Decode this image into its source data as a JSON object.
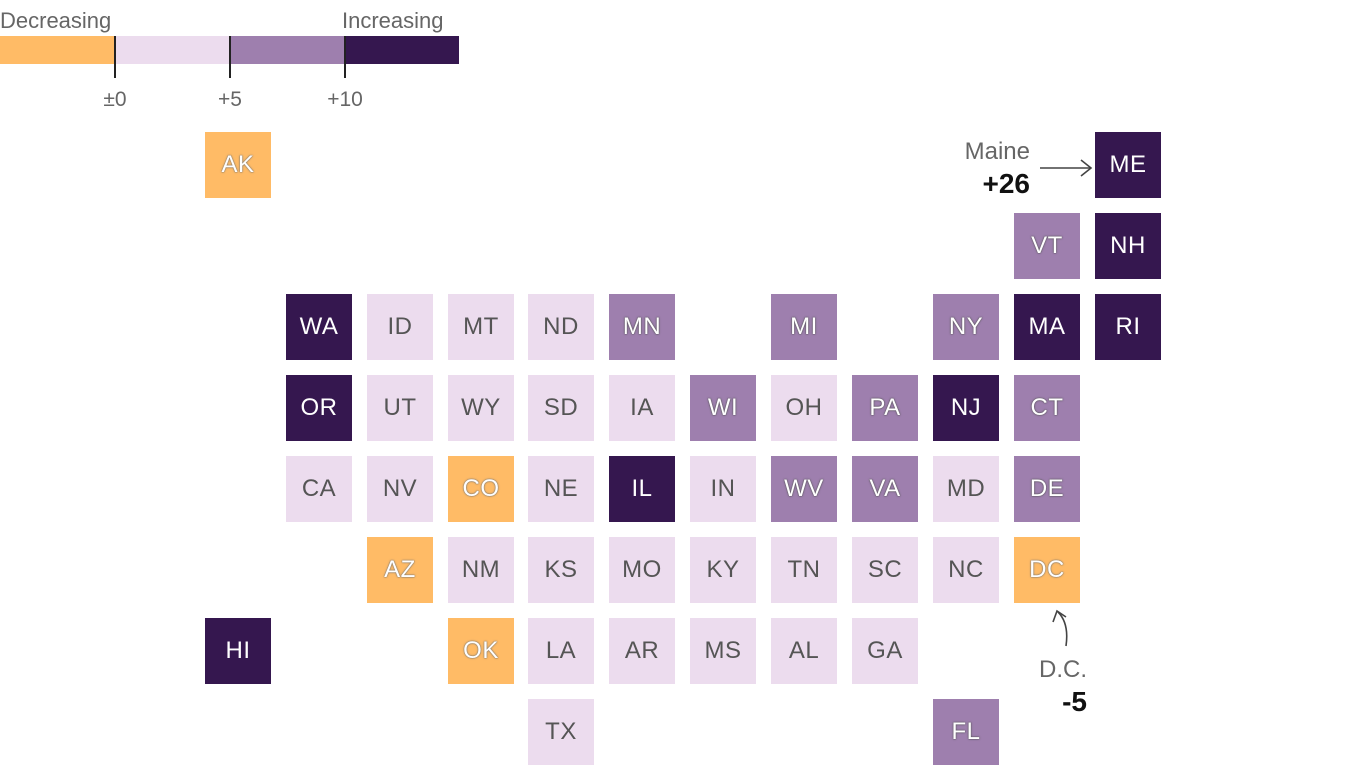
{
  "legend": {
    "decreasing_label": "Decreasing",
    "increasing_label": "Increasing",
    "ticks": [
      "±0",
      "+5",
      "+10"
    ],
    "colors": {
      "decreasing": "#ffbb66",
      "low": "#ecdcee",
      "mid": "#9e7fae",
      "high": "#35174f"
    }
  },
  "states": {
    "AK": {
      "label": "AK",
      "category": "decreasing"
    },
    "ME": {
      "label": "ME",
      "category": "high"
    },
    "VT": {
      "label": "VT",
      "category": "mid"
    },
    "NH": {
      "label": "NH",
      "category": "high"
    },
    "WA": {
      "label": "WA",
      "category": "high"
    },
    "ID": {
      "label": "ID",
      "category": "low"
    },
    "MT": {
      "label": "MT",
      "category": "low"
    },
    "ND": {
      "label": "ND",
      "category": "low"
    },
    "MN": {
      "label": "MN",
      "category": "mid"
    },
    "MI": {
      "label": "MI",
      "category": "mid"
    },
    "NY": {
      "label": "NY",
      "category": "mid"
    },
    "MA": {
      "label": "MA",
      "category": "high"
    },
    "RI": {
      "label": "RI",
      "category": "high"
    },
    "OR": {
      "label": "OR",
      "category": "high"
    },
    "UT": {
      "label": "UT",
      "category": "low"
    },
    "WY": {
      "label": "WY",
      "category": "low"
    },
    "SD": {
      "label": "SD",
      "category": "low"
    },
    "IA": {
      "label": "IA",
      "category": "low"
    },
    "WI": {
      "label": "WI",
      "category": "mid"
    },
    "OH": {
      "label": "OH",
      "category": "low"
    },
    "PA": {
      "label": "PA",
      "category": "mid"
    },
    "NJ": {
      "label": "NJ",
      "category": "high"
    },
    "CT": {
      "label": "CT",
      "category": "mid"
    },
    "CA": {
      "label": "CA",
      "category": "low"
    },
    "NV": {
      "label": "NV",
      "category": "low"
    },
    "CO": {
      "label": "CO",
      "category": "decreasing"
    },
    "NE": {
      "label": "NE",
      "category": "low"
    },
    "IL": {
      "label": "IL",
      "category": "high"
    },
    "IN": {
      "label": "IN",
      "category": "low"
    },
    "WV": {
      "label": "WV",
      "category": "mid"
    },
    "VA": {
      "label": "VA",
      "category": "mid"
    },
    "MD": {
      "label": "MD",
      "category": "low"
    },
    "DE": {
      "label": "DE",
      "category": "mid"
    },
    "AZ": {
      "label": "AZ",
      "category": "decreasing"
    },
    "NM": {
      "label": "NM",
      "category": "low"
    },
    "KS": {
      "label": "KS",
      "category": "low"
    },
    "MO": {
      "label": "MO",
      "category": "low"
    },
    "KY": {
      "label": "KY",
      "category": "low"
    },
    "TN": {
      "label": "TN",
      "category": "low"
    },
    "SC": {
      "label": "SC",
      "category": "low"
    },
    "NC": {
      "label": "NC",
      "category": "low"
    },
    "DC": {
      "label": "DC",
      "category": "decreasing"
    },
    "HI": {
      "label": "HI",
      "category": "high"
    },
    "OK": {
      "label": "OK",
      "category": "decreasing"
    },
    "LA": {
      "label": "LA",
      "category": "low"
    },
    "AR": {
      "label": "AR",
      "category": "low"
    },
    "MS": {
      "label": "MS",
      "category": "low"
    },
    "AL": {
      "label": "AL",
      "category": "low"
    },
    "GA": {
      "label": "GA",
      "category": "low"
    },
    "TX": {
      "label": "TX",
      "category": "low"
    },
    "FL": {
      "label": "FL",
      "category": "mid"
    }
  },
  "annotations": {
    "maine": {
      "name": "Maine",
      "value": "+26"
    },
    "dc": {
      "name": "D.C.",
      "value": "-5"
    }
  }
}
